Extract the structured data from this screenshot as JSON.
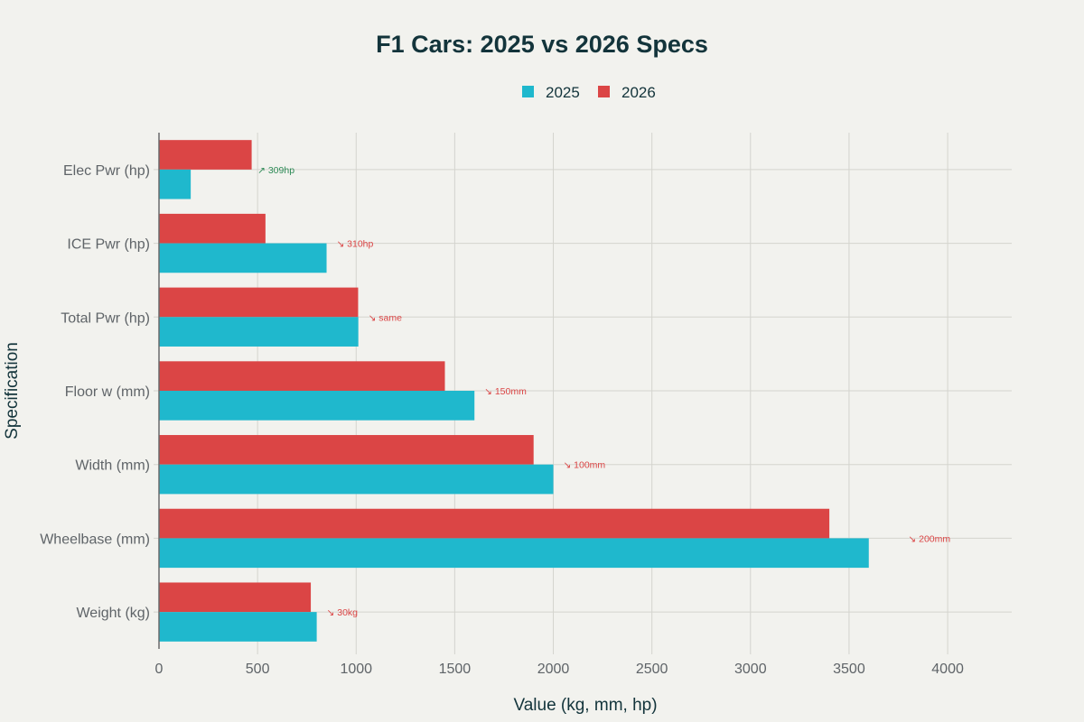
{
  "chart_data": {
    "type": "bar",
    "orientation": "horizontal",
    "title": "F1 Cars: 2025 vs 2026 Specs",
    "xlabel": "Value (kg, mm, hp)",
    "ylabel": "Specification",
    "xlim": [
      0,
      4325
    ],
    "xticks": [
      0,
      500,
      1000,
      1500,
      2000,
      2500,
      3000,
      3500,
      4000
    ],
    "grid": true,
    "legend": {
      "placement": "top-center",
      "orientation": "horizontal"
    },
    "categories": [
      "Elec Pwr (hp)",
      "ICE Pwr (hp)",
      "Total Pwr (hp)",
      "Floor w (mm)",
      "Width (mm)",
      "Wheelbase (mm)",
      "Weight (kg)"
    ],
    "series": [
      {
        "name": "2025",
        "color": "#1fb8cd",
        "values": [
          161,
          850,
          1011,
          1600,
          2000,
          3600,
          800
        ]
      },
      {
        "name": "2026",
        "color": "#db4545",
        "values": [
          470,
          540,
          1010,
          1450,
          1900,
          3400,
          770
        ]
      }
    ],
    "annotations": [
      {
        "category": "Elec Pwr (hp)",
        "text": "↗ 309hp",
        "color": "#2e8b57",
        "x": 500
      },
      {
        "category": "ICE Pwr (hp)",
        "text": "↘ 310hp",
        "color": "#db4545",
        "x": 900
      },
      {
        "category": "Total Pwr (hp)",
        "text": "↘ same",
        "color": "#db4545",
        "x": 1061
      },
      {
        "category": "Floor w (mm)",
        "text": "↘ 150mm",
        "color": "#db4545",
        "x": 1650
      },
      {
        "category": "Width (mm)",
        "text": "↘ 100mm",
        "color": "#db4545",
        "x": 2050
      },
      {
        "category": "Wheelbase (mm)",
        "text": "↘ 200mm",
        "color": "#db4545",
        "x": 3800
      },
      {
        "category": "Weight (kg)",
        "text": "↘ 30kg",
        "color": "#db4545",
        "x": 850
      }
    ]
  }
}
